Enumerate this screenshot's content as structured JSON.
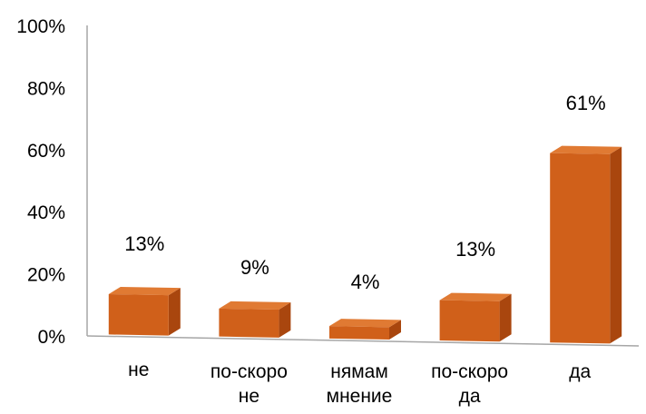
{
  "chart_data": {
    "type": "bar",
    "title": "",
    "xlabel": "",
    "ylabel": "",
    "ylim": [
      0,
      100
    ],
    "yticks": [
      0,
      20,
      40,
      60,
      80,
      100
    ],
    "ytick_labels": [
      "0%",
      "20%",
      "40%",
      "60%",
      "80%",
      "100%"
    ],
    "grid": false,
    "legend": "none",
    "categories": [
      [
        "не"
      ],
      [
        "по-скоро",
        "не"
      ],
      [
        "нямам",
        "мнение"
      ],
      [
        "по-скоро",
        "да"
      ],
      [
        "да"
      ]
    ],
    "values": [
      13,
      9,
      4,
      13,
      61
    ],
    "data_labels": [
      "13%",
      "9%",
      "4%",
      "13%",
      "61%"
    ],
    "style": "3d-bar",
    "colors": {
      "bar_front": "#D0601A",
      "bar_top": "#E07A33",
      "bar_side": "#A9460E",
      "axis": "#A6A6A6"
    }
  }
}
